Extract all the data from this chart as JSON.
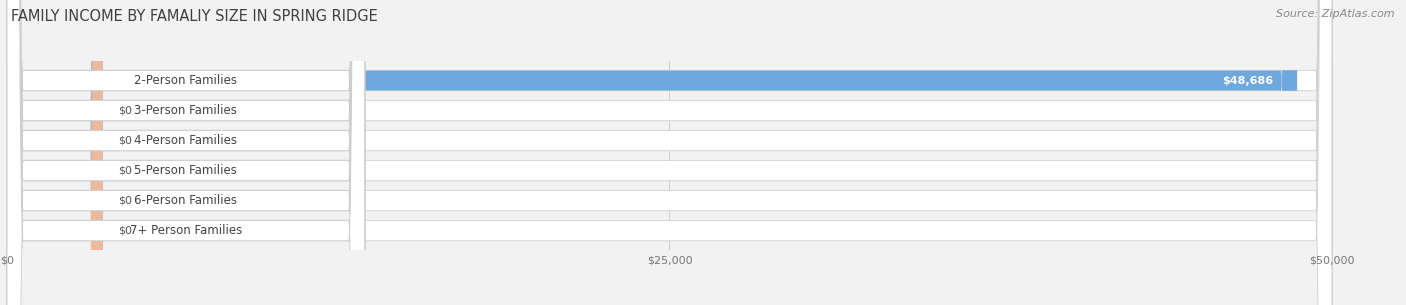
{
  "title": "FAMILY INCOME BY FAMALIY SIZE IN SPRING RIDGE",
  "source": "Source: ZipAtlas.com",
  "categories": [
    "2-Person Families",
    "3-Person Families",
    "4-Person Families",
    "5-Person Families",
    "6-Person Families",
    "7+ Person Families"
  ],
  "values": [
    48686,
    0,
    0,
    0,
    0,
    0
  ],
  "bar_colors": [
    "#6fa8dc",
    "#b4a0c8",
    "#6dbfb8",
    "#a8b4e0",
    "#f48aaa",
    "#f4c890"
  ],
  "value_labels": [
    "$48,686",
    "$0",
    "$0",
    "$0",
    "$0",
    "$0"
  ],
  "xlim": [
    0,
    52000
  ],
  "max_val": 50000,
  "xticks": [
    0,
    25000,
    50000
  ],
  "xtick_labels": [
    "$0",
    "$25,000",
    "$50,000"
  ],
  "bg_color": "#f2f2f2",
  "bar_bg_color": "#ebebeb",
  "title_fontsize": 10.5,
  "source_fontsize": 8,
  "label_fontsize": 8.5,
  "value_fontsize": 8
}
